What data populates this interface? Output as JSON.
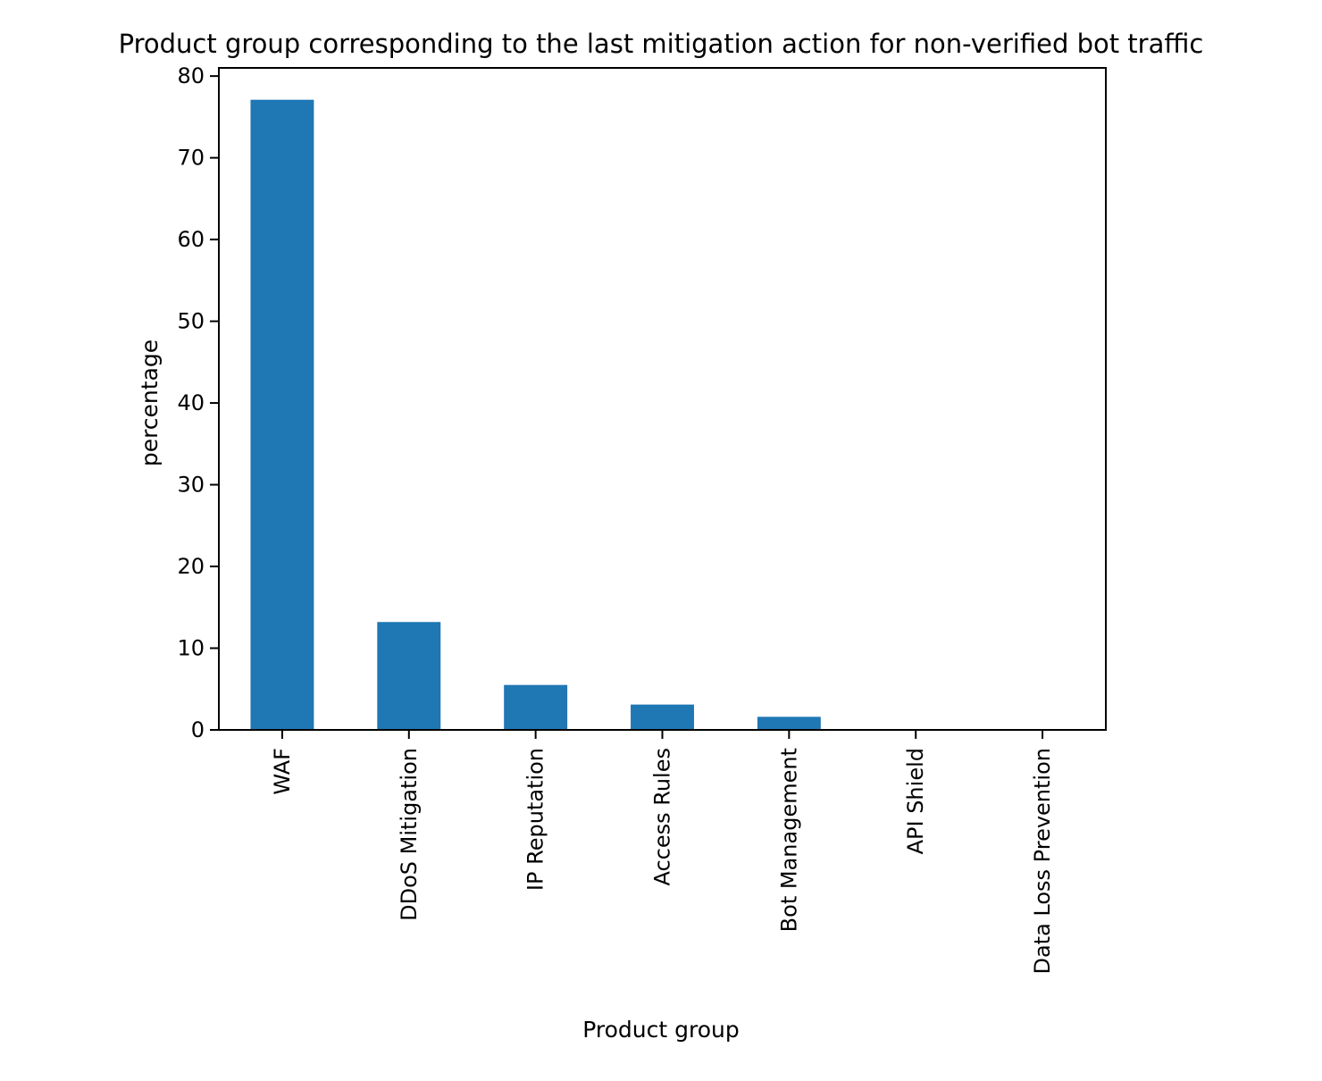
{
  "chart_data": {
    "type": "bar",
    "title": "Product group corresponding to the last mitigation action for non-verified bot traffic",
    "xlabel": "Product group",
    "ylabel": "percentage",
    "categories": [
      "WAF",
      "DDoS Mitigation",
      "IP Reputation",
      "Access Rules",
      "Bot Management",
      "API Shield",
      "Data Loss Prevention"
    ],
    "values": [
      77.1,
      13.2,
      5.5,
      3.1,
      1.6,
      0.0,
      0.0
    ],
    "ylim": [
      0,
      81
    ],
    "yticks": [
      0,
      10,
      20,
      30,
      40,
      50,
      60,
      70,
      80
    ],
    "grid": false,
    "legend": "none",
    "colors": {
      "bar": "#1f77b4",
      "axis": "#000000",
      "text": "#000000"
    }
  }
}
